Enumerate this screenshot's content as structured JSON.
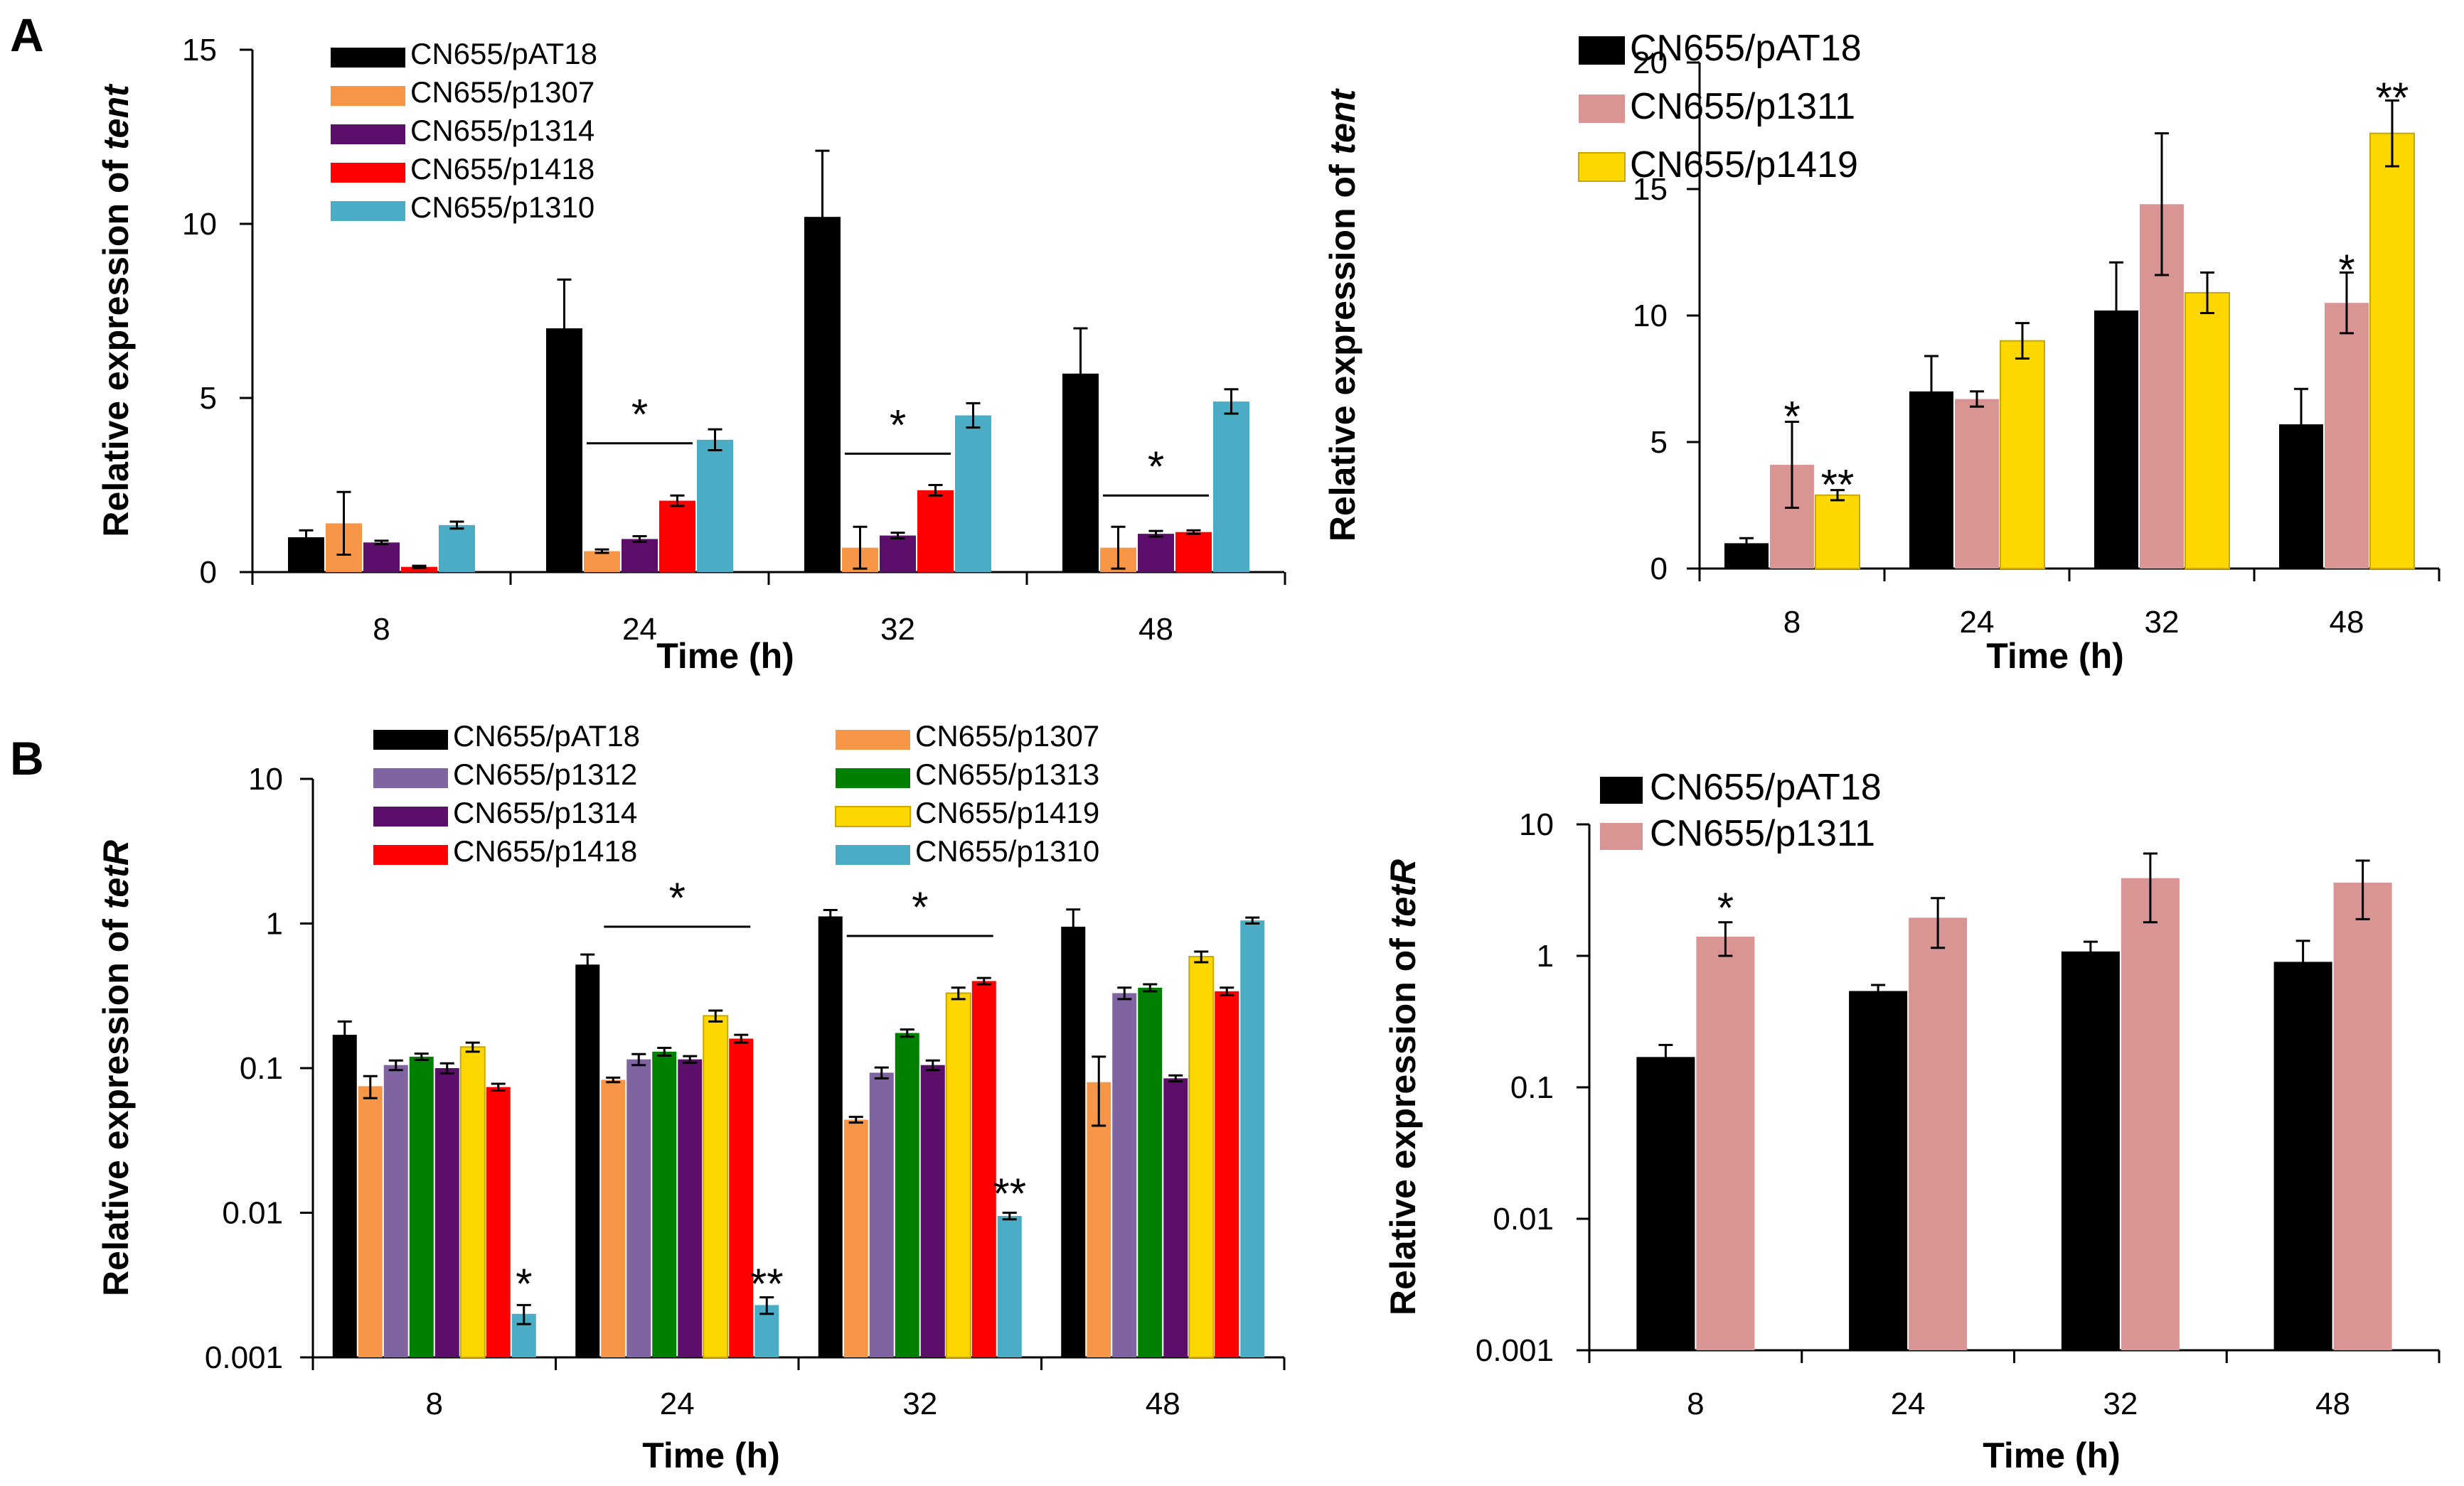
{
  "figure": {
    "panel_labels": [
      "A",
      "B"
    ]
  },
  "chart_data": [
    {
      "id": "A1",
      "type": "bar",
      "scale": "linear",
      "ylabel_prefix": "Relative expression of ",
      "ylabel_gene": "tent",
      "xlabel": "Time (h)",
      "categories": [
        "8",
        "24",
        "32",
        "48"
      ],
      "ylim": [
        0,
        15
      ],
      "yticks": [
        0,
        5,
        10,
        15
      ],
      "yticklabels": [
        "0",
        "5",
        "10",
        "15"
      ],
      "legend_position": "top-left",
      "series": [
        {
          "name": "CN655/pAT18",
          "color": "#000000",
          "values": [
            1.0,
            7.0,
            10.2,
            5.7
          ],
          "errors": [
            0.2,
            1.4,
            1.9,
            1.3
          ]
        },
        {
          "name": "CN655/p1307",
          "color": "#f79646",
          "values": [
            1.4,
            0.6,
            0.7,
            0.7
          ],
          "errors": [
            0.9,
            0.05,
            0.6,
            0.6
          ]
        },
        {
          "name": "CN655/p1314",
          "color": "#5c0f6a",
          "values": [
            0.85,
            0.95,
            1.05,
            1.1
          ],
          "errors": [
            0.05,
            0.08,
            0.08,
            0.08
          ]
        },
        {
          "name": "CN655/p1418",
          "color": "#ff0000",
          "values": [
            0.15,
            2.05,
            2.35,
            1.15
          ],
          "errors": [
            0.03,
            0.15,
            0.15,
            0.05
          ]
        },
        {
          "name": "CN655/p1310",
          "color": "#4bacc6",
          "values": [
            1.35,
            3.8,
            4.5,
            4.9
          ],
          "errors": [
            0.1,
            0.3,
            0.35,
            0.35
          ]
        }
      ],
      "annotations": [
        {
          "text": "*",
          "category": "24",
          "value": 3.7,
          "bracket": [
            1,
            3
          ]
        },
        {
          "text": "*",
          "category": "32",
          "value": 3.4,
          "bracket": [
            1,
            3
          ]
        },
        {
          "text": "*",
          "category": "48",
          "value": 2.2,
          "bracket": [
            1,
            3
          ]
        }
      ]
    },
    {
      "id": "A2",
      "type": "bar",
      "scale": "linear",
      "ylabel_prefix": "Relative expression of ",
      "ylabel_gene": "tent",
      "xlabel": "Time (h)",
      "categories": [
        "8",
        "24",
        "32",
        "48"
      ],
      "ylim": [
        0,
        20
      ],
      "yticks": [
        0,
        5,
        10,
        15,
        20
      ],
      "yticklabels": [
        "0",
        "5",
        "10",
        "15",
        "20"
      ],
      "legend_position": "top-left",
      "series": [
        {
          "name": "CN655/pAT18",
          "color": "#000000",
          "values": [
            1.0,
            7.0,
            10.2,
            5.7
          ],
          "errors": [
            0.2,
            1.4,
            1.9,
            1.4
          ]
        },
        {
          "name": "CN655/p1311",
          "color": "#d99594",
          "values": [
            4.1,
            6.7,
            14.4,
            10.5
          ],
          "errors": [
            1.7,
            0.3,
            2.8,
            1.2
          ]
        },
        {
          "name": "CN655/p1419",
          "color": "#ffd700",
          "values": [
            2.9,
            9.0,
            10.9,
            17.2
          ],
          "errors": [
            0.2,
            0.7,
            0.8,
            1.3
          ]
        }
      ],
      "annotations": [
        {
          "text": "*",
          "category": "8",
          "series": 1,
          "value": 6.0
        },
        {
          "text": "**",
          "category": "8",
          "series": 2,
          "value": 3.3
        },
        {
          "text": "*",
          "category": "48",
          "series": 1,
          "value": 11.8
        },
        {
          "text": "**",
          "category": "48",
          "series": 2,
          "value": 18.6
        }
      ]
    },
    {
      "id": "B1",
      "type": "bar",
      "scale": "log",
      "ylabel_prefix": "Relative expression of ",
      "ylabel_gene": "tetR",
      "xlabel": "Time (h)",
      "categories": [
        "8",
        "24",
        "32",
        "48"
      ],
      "ylim": [
        0.001,
        10
      ],
      "yticks": [
        0.001,
        0.01,
        0.1,
        1,
        10
      ],
      "yticklabels": [
        "0.001",
        "0.01",
        "0.1",
        "1",
        "10"
      ],
      "legend_position": "top",
      "series": [
        {
          "name": "CN655/pAT18",
          "color": "#000000",
          "values": [
            0.17,
            0.52,
            1.12,
            0.95
          ],
          "errors": [
            0.04,
            0.09,
            0.12,
            0.3
          ]
        },
        {
          "name": "CN655/p1307",
          "color": "#f79646",
          "values": [
            0.075,
            0.083,
            0.044,
            0.08
          ],
          "errors": [
            0.013,
            0.003,
            0.002,
            0.04
          ]
        },
        {
          "name": "CN655/p1312",
          "color": "#8064a2",
          "values": [
            0.105,
            0.115,
            0.093,
            0.33
          ],
          "errors": [
            0.008,
            0.01,
            0.008,
            0.03
          ]
        },
        {
          "name": "CN655/p1313",
          "color": "#008000",
          "values": [
            0.12,
            0.13,
            0.175,
            0.36
          ],
          "errors": [
            0.006,
            0.008,
            0.01,
            0.02
          ]
        },
        {
          "name": "CN655/p1314",
          "color": "#5c0f6a",
          "values": [
            0.1,
            0.115,
            0.105,
            0.085
          ],
          "errors": [
            0.008,
            0.006,
            0.008,
            0.004
          ]
        },
        {
          "name": "CN655/p1419",
          "color": "#ffd700",
          "values": [
            0.14,
            0.23,
            0.33,
            0.59
          ],
          "errors": [
            0.01,
            0.02,
            0.03,
            0.05
          ]
        },
        {
          "name": "CN655/p1418",
          "color": "#ff0000",
          "values": [
            0.074,
            0.16,
            0.4,
            0.34
          ],
          "errors": [
            0.004,
            0.01,
            0.02,
            0.02
          ]
        },
        {
          "name": "CN655/p1310",
          "color": "#4bacc6",
          "values": [
            0.002,
            0.0023,
            0.0095,
            1.05
          ],
          "errors": [
            0.0003,
            0.0003,
            0.0005,
            0.05
          ]
        }
      ],
      "annotations": [
        {
          "text": "*",
          "category": "24",
          "value": 0.95,
          "bracket": [
            1,
            6
          ]
        },
        {
          "text": "*",
          "category": "32",
          "value": 0.82,
          "bracket": [
            1,
            6
          ]
        },
        {
          "text": "*",
          "category": "8",
          "series": 7,
          "value": 0.0032
        },
        {
          "text": "**",
          "category": "24",
          "series": 7,
          "value": 0.0032
        },
        {
          "text": "**",
          "category": "32",
          "series": 7,
          "value": 0.0135
        }
      ]
    },
    {
      "id": "B2",
      "type": "bar",
      "scale": "log",
      "ylabel_prefix": "Relative expression of ",
      "ylabel_gene": "tetR",
      "xlabel": "Time (h)",
      "categories": [
        "8",
        "24",
        "32",
        "48"
      ],
      "ylim": [
        0.001,
        10
      ],
      "yticks": [
        0.001,
        0.01,
        0.1,
        1,
        10
      ],
      "yticklabels": [
        "0.001",
        "0.01",
        "0.1",
        "1",
        "10"
      ],
      "legend_position": "top-left",
      "series": [
        {
          "name": "CN655/pAT18",
          "color": "#000000",
          "values": [
            0.17,
            0.54,
            1.08,
            0.9
          ],
          "errors": [
            0.04,
            0.06,
            0.2,
            0.4
          ]
        },
        {
          "name": "CN655/p1311",
          "color": "#d99594",
          "values": [
            1.4,
            1.95,
            3.9,
            3.6
          ],
          "errors": [
            0.4,
            0.8,
            2.1,
            1.7
          ]
        }
      ],
      "annotations": [
        {
          "text": "*",
          "category": "8",
          "series": 1,
          "value": 2.3
        }
      ]
    }
  ]
}
